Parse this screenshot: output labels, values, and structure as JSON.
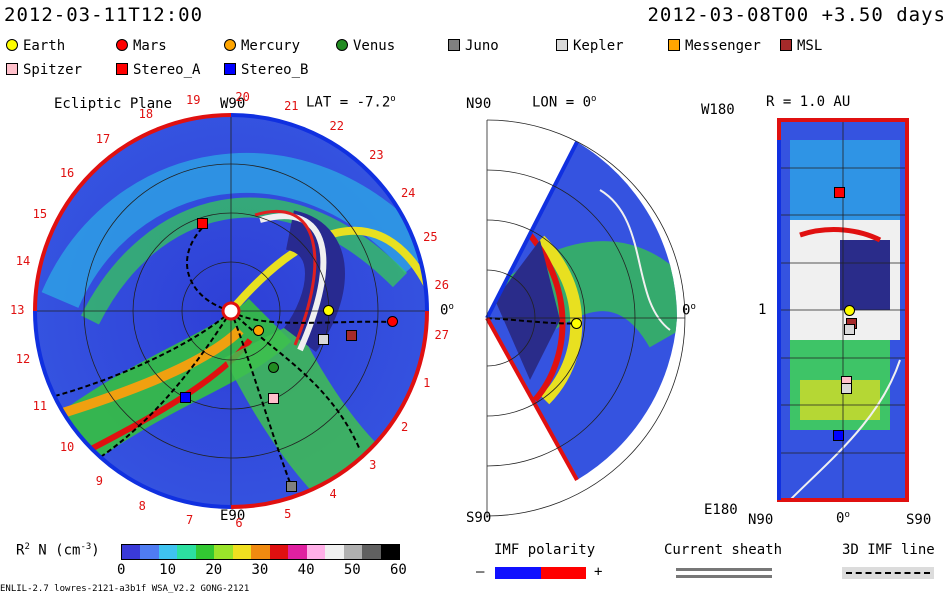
{
  "header": {
    "left_timestamp": "2012-03-11T12:00",
    "right_timestamp": "2012-03-08T00 +3.50 days"
  },
  "legend": [
    {
      "label": "Earth",
      "shape": "circle",
      "color": "#ffff00"
    },
    {
      "label": "Mars",
      "shape": "circle",
      "color": "#ff0000"
    },
    {
      "label": "Mercury",
      "shape": "circle",
      "color": "#ffa500"
    },
    {
      "label": "Venus",
      "shape": "circle",
      "color": "#228b22"
    },
    {
      "label": "Juno",
      "shape": "square",
      "color": "#808080"
    },
    {
      "label": "Kepler",
      "shape": "square",
      "color": "#d9d9d9"
    },
    {
      "label": "Messenger",
      "shape": "square",
      "color": "#ffa500"
    },
    {
      "label": "MSL",
      "shape": "square",
      "color": "#a52a2a"
    },
    {
      "label": "Spitzer",
      "shape": "square",
      "color": "#ffc0cb"
    },
    {
      "label": "Stereo_A",
      "shape": "square",
      "color": "#ff0000"
    },
    {
      "label": "Stereo_B",
      "shape": "square",
      "color": "#0000ff"
    }
  ],
  "panel_ecliptic": {
    "title": "Ecliptic Plane",
    "top_label": "W90",
    "bottom_label": "E90",
    "right_label": "0",
    "right_label_sup": "o",
    "lat_label": "LAT = -7.2",
    "lat_label_sup": "o",
    "carrington_ticks": [
      "19",
      "20",
      "21",
      "22",
      "23",
      "24",
      "25",
      "26",
      "27",
      "1",
      "2",
      "3",
      "4",
      "5",
      "6",
      "7",
      "8",
      "9",
      "10",
      "11",
      "12",
      "13",
      "14",
      "15",
      "16",
      "17",
      "18"
    ]
  },
  "panel_meridional": {
    "top_label": "N90",
    "bottom_label": "S90",
    "right_label": "0",
    "right_label_sup": "o",
    "lon_label": "LON = 0",
    "lon_label_sup": "o"
  },
  "panel_radial": {
    "r_label": "R = 1.0 AU",
    "top_left_label": "W180",
    "bottom_left_label": "E180",
    "mid_left_label": "1",
    "bottom_labels": [
      "N90",
      "0",
      "S90"
    ],
    "bottom_mid_sup": "o"
  },
  "colorbar": {
    "label_main": "R",
    "label_sup": "2",
    "label_rest": " N (cm",
    "label_unit_sup": "-3",
    "label_close": ")",
    "ticks": [
      "0",
      "10",
      "20",
      "30",
      "40",
      "50",
      "60"
    ],
    "colors": [
      "#3a3ad8",
      "#4f7cf2",
      "#3fc3f0",
      "#2ce0a0",
      "#32c832",
      "#9ae42a",
      "#f0e020",
      "#f08a10",
      "#e01010",
      "#e020a0",
      "#ffb0e8",
      "#f0f0f0",
      "#b0b0b0",
      "#606060",
      "#000000"
    ]
  },
  "bottom_legend": {
    "imf_polarity": "IMF polarity",
    "imf_minus": "–",
    "imf_plus": "+",
    "current_sheath": "Current sheath",
    "imf_line": "3D IMF line"
  },
  "footer": {
    "model_info": "ENLIL-2.7 lowres-2121-a3b1f WSA_V2.2 GONG-2121"
  }
}
